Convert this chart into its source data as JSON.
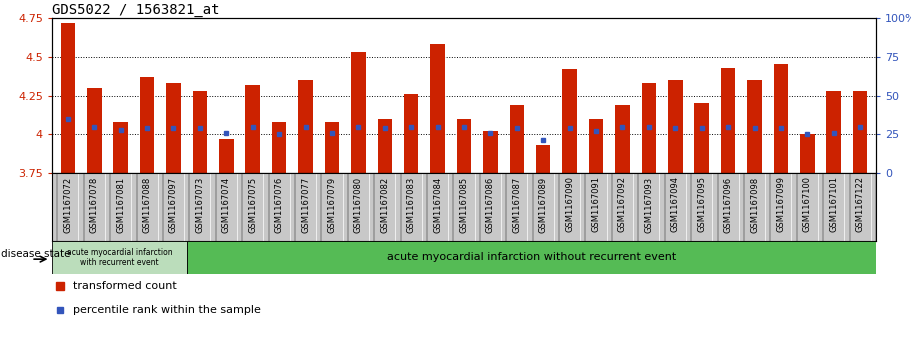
{
  "title": "GDS5022 / 1563821_at",
  "samples": [
    "GSM1167072",
    "GSM1167078",
    "GSM1167081",
    "GSM1167088",
    "GSM1167097",
    "GSM1167073",
    "GSM1167074",
    "GSM1167075",
    "GSM1167076",
    "GSM1167077",
    "GSM1167079",
    "GSM1167080",
    "GSM1167082",
    "GSM1167083",
    "GSM1167084",
    "GSM1167085",
    "GSM1167086",
    "GSM1167087",
    "GSM1167089",
    "GSM1167090",
    "GSM1167091",
    "GSM1167092",
    "GSM1167093",
    "GSM1167094",
    "GSM1167095",
    "GSM1167096",
    "GSM1167098",
    "GSM1167099",
    "GSM1167100",
    "GSM1167101",
    "GSM1167122"
  ],
  "bar_values": [
    4.72,
    4.3,
    4.08,
    4.37,
    4.33,
    4.28,
    3.97,
    4.32,
    4.08,
    4.35,
    4.08,
    4.53,
    4.1,
    4.26,
    4.58,
    4.1,
    4.02,
    4.19,
    3.93,
    4.42,
    4.1,
    4.19,
    4.33,
    4.35,
    4.2,
    4.43,
    4.35,
    4.45,
    4.0,
    4.28,
    4.28
  ],
  "percentile_values": [
    4.1,
    4.05,
    4.03,
    4.04,
    4.04,
    4.04,
    4.01,
    4.05,
    4.0,
    4.05,
    4.01,
    4.05,
    4.04,
    4.05,
    4.05,
    4.05,
    4.01,
    4.04,
    3.96,
    4.04,
    4.02,
    4.05,
    4.05,
    4.04,
    4.04,
    4.05,
    4.04,
    4.04,
    4.0,
    4.01,
    4.05
  ],
  "ymin": 3.75,
  "ymax": 4.75,
  "yticks_left": [
    3.75,
    4.0,
    4.25,
    4.5,
    4.75
  ],
  "ytick_labels_left": [
    "3.75",
    "4",
    "4.25",
    "4.5",
    "4.75"
  ],
  "right_ytick_positions": [
    0,
    25,
    50,
    75,
    100
  ],
  "bar_color": "#CC2200",
  "percentile_color": "#3355BB",
  "group1_count": 5,
  "group1_label": "acute myocardial infarction\nwith recurrent event",
  "group2_label": "acute myocardial infarction without recurrent event",
  "disease_state_label": "disease state",
  "legend_bar_label": "transformed count",
  "legend_dot_label": "percentile rank within the sample",
  "plot_bg_color": "#FFFFFF",
  "xtick_area_color": "#C8C8C8",
  "group1_color": "#BBDDBB",
  "group2_color": "#55BB55",
  "title_fontsize": 10,
  "bar_width": 0.55
}
